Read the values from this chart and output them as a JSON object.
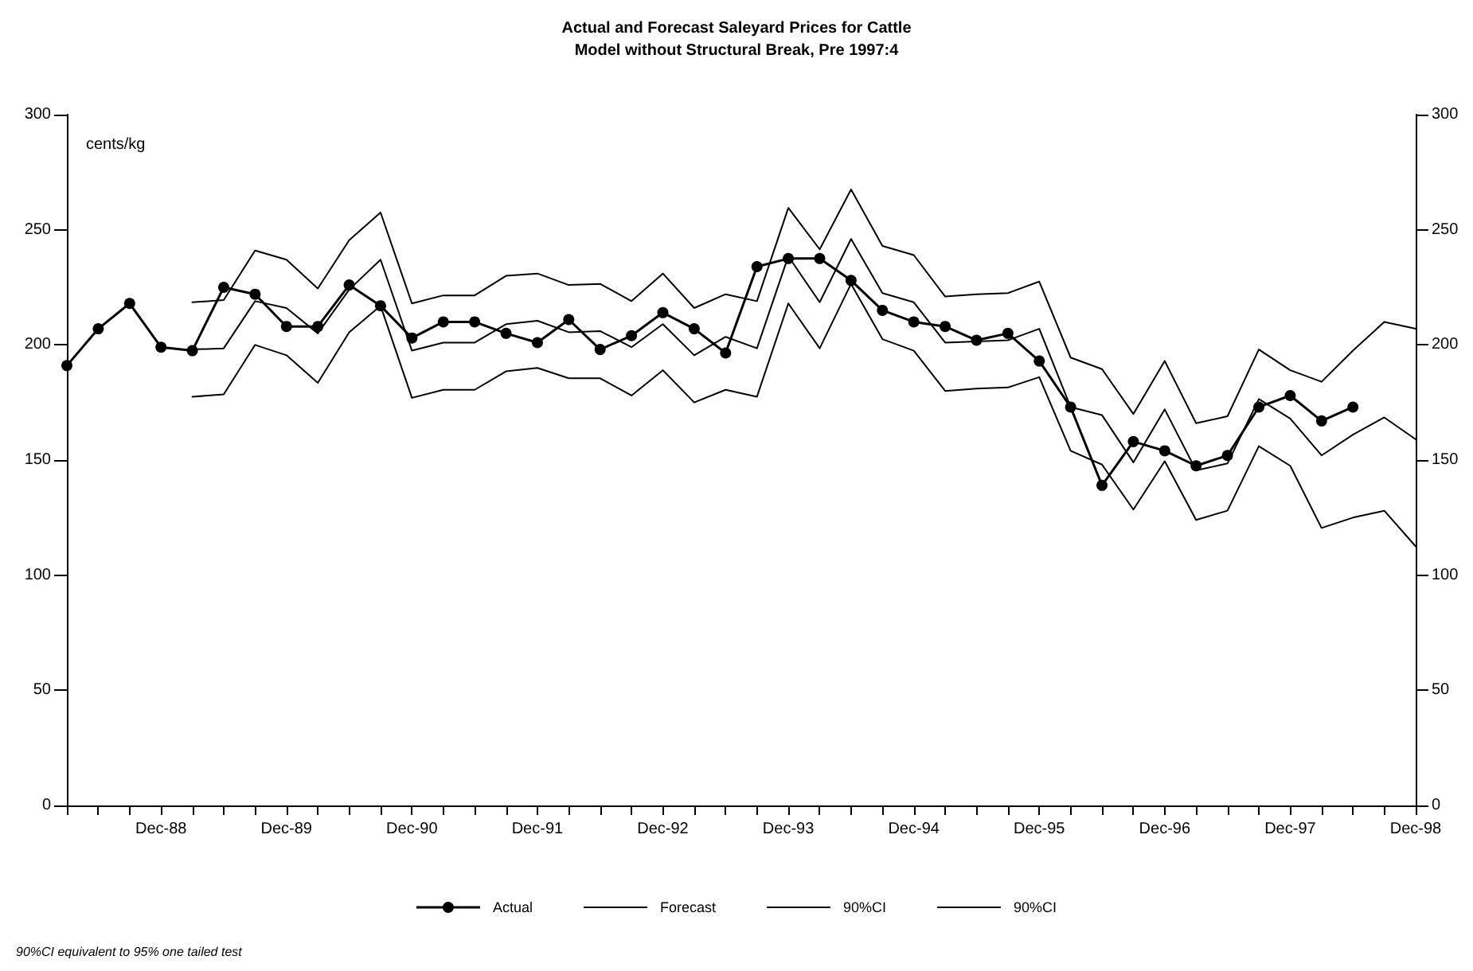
{
  "chart_data": {
    "type": "line",
    "title": "Actual and Forecast Saleyard Prices for Cattle",
    "subtitle": "Model without Structural Break, Pre 1997:4",
    "ylabel": "cents/kg",
    "annotations": [
      "90%CI equivalent to 95% one tailed test"
    ],
    "categories": [
      null,
      null,
      null,
      "Dec-88",
      null,
      null,
      null,
      "Dec-89",
      null,
      null,
      null,
      "Dec-90",
      null,
      null,
      null,
      "Dec-91",
      null,
      null,
      null,
      "Dec-92",
      null,
      null,
      null,
      "Dec-93",
      null,
      null,
      null,
      "Dec-94",
      null,
      null,
      null,
      "Dec-95",
      null,
      null,
      null,
      "Dec-96",
      null,
      null,
      null,
      "Dec-97",
      null,
      null,
      null,
      "Dec-98"
    ],
    "series": [
      {
        "name": "Actual",
        "color": "#000000",
        "marker": "circle",
        "values": [
          191,
          207,
          218,
          199,
          197.5,
          225,
          222,
          208,
          208,
          226,
          217,
          203,
          210,
          210,
          205,
          201,
          211,
          198,
          204,
          214,
          207,
          196.5,
          234,
          237.5,
          237.5,
          228,
          215,
          210,
          208,
          202,
          205,
          193,
          173,
          139,
          158,
          154,
          147.5,
          152,
          173,
          178,
          167,
          173,
          null,
          null
        ]
      },
      {
        "name": "Forecast",
        "color": "#000000",
        "marker": "none",
        "values": [
          null,
          null,
          null,
          null,
          198,
          198.5,
          219,
          216,
          205,
          224,
          237,
          197.5,
          201,
          201,
          209,
          210.5,
          205.5,
          206,
          199,
          209,
          195.5,
          203.5,
          198.5,
          238.5,
          218.5,
          246,
          222.5,
          218.5,
          201,
          201.5,
          202,
          207,
          173,
          169.5,
          149,
          172,
          145.5,
          148.5,
          176.5,
          168,
          152,
          161,
          168.5,
          159
        ]
      },
      {
        "name": "90%CI",
        "color": "#000000",
        "marker": "none",
        "values": [
          null,
          null,
          null,
          null,
          218.5,
          219.5,
          241,
          237,
          224.5,
          245.5,
          257.5,
          218,
          221.5,
          221.5,
          230,
          231,
          226,
          226.5,
          219,
          231,
          216,
          222,
          219,
          259.5,
          241.5,
          267.5,
          243,
          239,
          221,
          222,
          222.5,
          227.5,
          194.5,
          189.5,
          170,
          193,
          166,
          169,
          198,
          189,
          184,
          197.5,
          210,
          207
        ]
      },
      {
        "name": "90%CI",
        "color": "#000000",
        "marker": "none",
        "values": [
          null,
          null,
          null,
          null,
          177.5,
          178.5,
          200,
          195.5,
          183.5,
          205.5,
          217,
          177,
          180.5,
          180.5,
          188.5,
          190,
          185.5,
          185.5,
          178,
          189,
          175,
          180.5,
          177.5,
          218,
          198.5,
          226.5,
          202.5,
          197.5,
          180,
          181,
          181.5,
          186,
          154,
          148,
          128.5,
          149.5,
          124,
          128,
          156,
          147.5,
          120.5,
          125,
          128,
          112.5
        ]
      }
    ],
    "ylim": [
      0,
      300
    ],
    "yticks": [
      0,
      50,
      100,
      150,
      200,
      250,
      300
    ],
    "y2lim": [
      0,
      300
    ],
    "y2ticks": [
      0,
      50,
      100,
      150,
      200,
      250,
      300
    ],
    "grid": false,
    "legend": "bottom"
  }
}
